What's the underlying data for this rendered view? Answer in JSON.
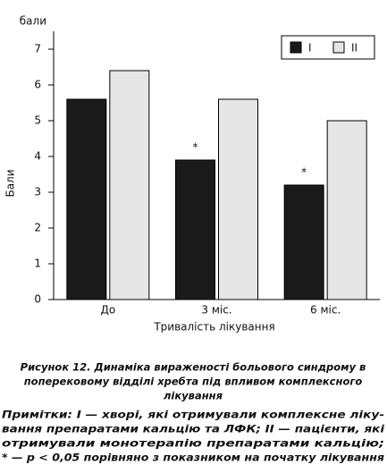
{
  "chart_data": {
    "type": "bar",
    "y_label": "бали",
    "y_axis_title": "Бали",
    "x_label": "Тривалість лікування",
    "categories": [
      "До",
      "3 міс.",
      "6 міс."
    ],
    "series": [
      {
        "name": "I",
        "color": "#1a1a1a",
        "values": [
          5.6,
          3.9,
          3.2
        ],
        "significance": [
          null,
          "*",
          "*"
        ]
      },
      {
        "name": "II",
        "color": "#e6e6e6",
        "values": [
          6.4,
          5.6,
          5.0
        ]
      }
    ],
    "ylim": [
      0,
      7.5
    ],
    "yticks": [
      0,
      1,
      2,
      3,
      4,
      5,
      6,
      7
    ],
    "legend": "top-right"
  },
  "caption": {
    "title_lines": [
      "Рисунок 12. Динаміка вираженості больового синдрому в",
      "поперековому відділі хребта під впливом комплексного",
      "лікування"
    ],
    "note_lines": [
      "Примітки: I — хворі, які отримували комплексне ліку-",
      "вання препаратами кальцію та ЛФК; II — пацієнти, які",
      "отримували монотерапію препаратами кальцію;",
      "* — p < 0,05 порівняно з показником на початку лікування"
    ]
  }
}
